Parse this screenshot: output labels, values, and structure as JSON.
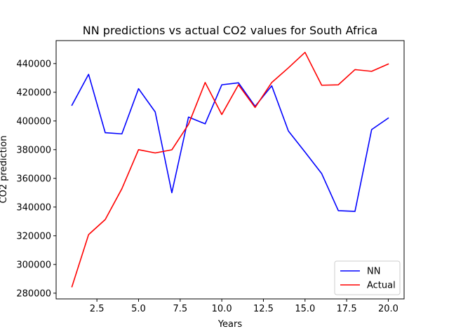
{
  "chart_data": {
    "type": "line",
    "title": "NN predictions vs actual CO2 values for South Africa",
    "xlabel": "Years",
    "ylabel": "CO2 prediction",
    "x": [
      1,
      2,
      3,
      4,
      5,
      6,
      7,
      8,
      9,
      10,
      11,
      12,
      13,
      14,
      15,
      16,
      17,
      18,
      19,
      20
    ],
    "xticks": [
      2.5,
      5.0,
      7.5,
      10.0,
      12.5,
      15.0,
      17.5,
      20.0
    ],
    "xtick_labels": [
      "2.5",
      "5.0",
      "7.5",
      "10.0",
      "12.5",
      "15.0",
      "17.5",
      "20.0"
    ],
    "yticks": [
      280000,
      300000,
      320000,
      340000,
      360000,
      380000,
      400000,
      420000,
      440000
    ],
    "ytick_labels": [
      "280000",
      "300000",
      "320000",
      "340000",
      "360000",
      "380000",
      "400000",
      "420000",
      "440000"
    ],
    "xlim": [
      0.05,
      20.95
    ],
    "ylim": [
      276000,
      456000
    ],
    "grid": false,
    "legend_position": "lower-right",
    "series": [
      {
        "name": "NN",
        "color": "#0000ff",
        "values": [
          411000,
          432500,
          391800,
          391000,
          422500,
          406300,
          350000,
          402700,
          398000,
          425200,
          426600,
          410200,
          424500,
          393000,
          378300,
          363300,
          337500,
          337000,
          394000,
          402000
        ]
      },
      {
        "name": "Actual",
        "color": "#ff0000",
        "values": [
          284500,
          320800,
          331300,
          352800,
          380000,
          377700,
          379900,
          397600,
          426800,
          404500,
          425200,
          409400,
          426800,
          437000,
          447800,
          424900,
          425200,
          435800,
          434600,
          439700
        ]
      }
    ]
  }
}
